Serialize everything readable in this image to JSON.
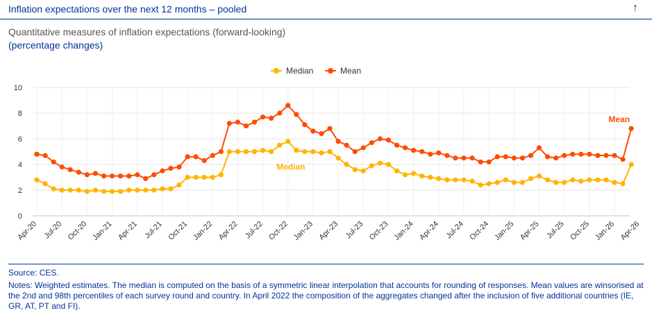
{
  "header": {
    "title": "Inflation expectations over the next 12 months – pooled",
    "arrow_icon": "arrow-up-icon"
  },
  "chart_data": {
    "type": "line",
    "title": "Quantitative measures of inflation expectations (forward-looking)",
    "subtitle": "(percentage changes)",
    "ylim": [
      0,
      10
    ],
    "yticks": [
      0,
      2,
      4,
      6,
      8,
      10
    ],
    "xtick_labels": [
      "Apr-20",
      "Jul-20",
      "Oct-20",
      "Jan-21",
      "Apr-21",
      "Jul-21",
      "Oct-21",
      "Jan-22",
      "Apr-22",
      "Jul-22",
      "Oct-22",
      "Jan-23",
      "Apr-23",
      "Jul-23",
      "Oct-23",
      "Jan-24",
      "Apr-24",
      "Jul-24",
      "Oct-24",
      "Jan-25",
      "Apr-25",
      "Jul-25",
      "Oct-25",
      "Jan-26",
      "Apr-26"
    ],
    "legend_position": "top-center",
    "grid": true,
    "series": [
      {
        "name": "Median",
        "color": "#FFB400",
        "label": "Median",
        "values": [
          2.8,
          2.5,
          2.1,
          2.0,
          2.0,
          2.0,
          1.9,
          2.0,
          1.9,
          1.9,
          1.9,
          2.0,
          2.0,
          2.0,
          2.0,
          2.1,
          2.1,
          2.4,
          3.0,
          3.0,
          3.0,
          3.0,
          3.2,
          5.0,
          5.0,
          5.0,
          5.0,
          5.1,
          5.0,
          5.5,
          5.8,
          5.1,
          5.0,
          5.0,
          4.9,
          5.0,
          4.5,
          4.0,
          3.6,
          3.5,
          3.9,
          4.1,
          4.0,
          3.5,
          3.2,
          3.3,
          3.1,
          3.0,
          2.9,
          2.8,
          2.8,
          2.8,
          2.7,
          2.4,
          2.5,
          2.6,
          2.8,
          2.6,
          2.6,
          2.9,
          3.1,
          2.8,
          2.6,
          2.6,
          2.8,
          2.7,
          2.8,
          2.8,
          2.8,
          2.6,
          2.5,
          4.0
        ]
      },
      {
        "name": "Mean",
        "color": "#FF4B00",
        "label": "Mean",
        "values": [
          4.8,
          4.7,
          4.2,
          3.8,
          3.6,
          3.4,
          3.2,
          3.3,
          3.1,
          3.1,
          3.1,
          3.1,
          3.2,
          2.9,
          3.2,
          3.5,
          3.7,
          3.8,
          4.6,
          4.6,
          4.3,
          4.7,
          5.0,
          7.2,
          7.3,
          7.0,
          7.3,
          7.7,
          7.6,
          8.0,
          8.6,
          7.9,
          7.1,
          6.6,
          6.4,
          6.8,
          5.8,
          5.5,
          5.0,
          5.3,
          5.7,
          6.0,
          5.9,
          5.5,
          5.3,
          5.1,
          5.0,
          4.8,
          4.9,
          4.7,
          4.5,
          4.5,
          4.5,
          4.2,
          4.2,
          4.6,
          4.6,
          4.5,
          4.5,
          4.7,
          5.3,
          4.6,
          4.5,
          4.7,
          4.8,
          4.8,
          4.8,
          4.7,
          4.7,
          4.7,
          4.4,
          6.8
        ]
      }
    ]
  },
  "footer": {
    "source": "Source: CES.",
    "notes": "Notes: Weighted estimates. The median is computed on the basis of a symmetric linear interpolation that accounts for rounding of responses. Mean values are winsorised at the 2nd and 98th percentiles of each survey round and country. In April 2022 the composition of the aggregates changed after the inclusion of five additional countries (IE, GR, AT, PT and FI)."
  }
}
